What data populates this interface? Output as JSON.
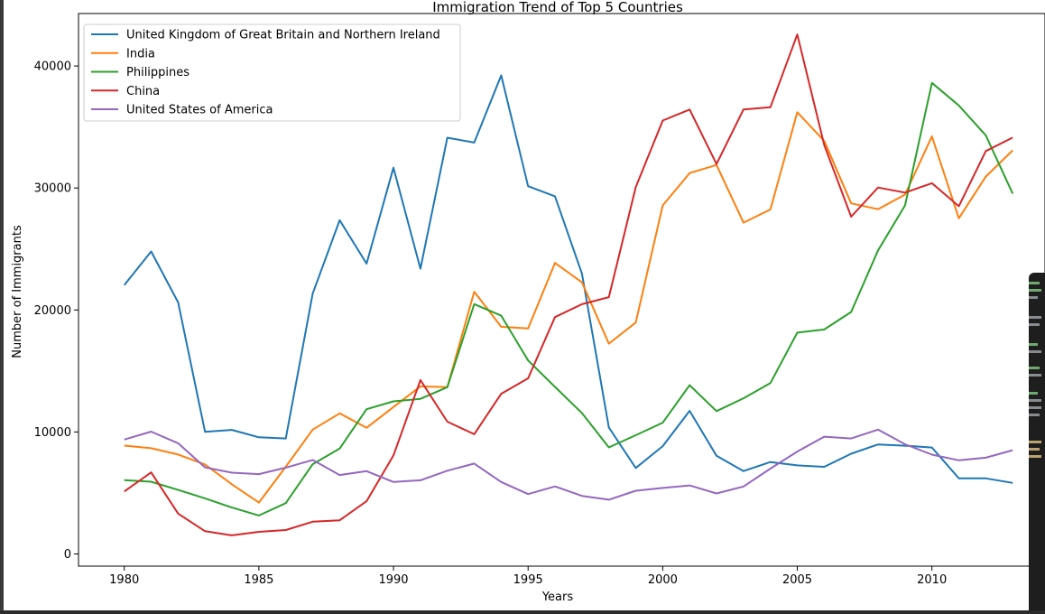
{
  "chart_data": {
    "type": "line",
    "title": "Immigration Trend of Top 5 Countries",
    "xlabel": "Years",
    "ylabel": "Number of Immigrants",
    "xlim": [
      1978.3,
      2014.2
    ],
    "ylim": [
      -1000,
      44300
    ],
    "xticks": [
      1980,
      1985,
      1990,
      1995,
      2000,
      2005,
      2010
    ],
    "yticks": [
      0,
      10000,
      20000,
      30000,
      40000
    ],
    "legend_position": "top-left",
    "grid": false,
    "x": [
      1980,
      1981,
      1982,
      1983,
      1984,
      1985,
      1986,
      1987,
      1988,
      1989,
      1990,
      1991,
      1992,
      1993,
      1994,
      1995,
      1996,
      1997,
      1998,
      1999,
      2000,
      2001,
      2002,
      2003,
      2004,
      2005,
      2006,
      2007,
      2008,
      2009,
      2010,
      2011,
      2012,
      2013
    ],
    "series": [
      {
        "name": "United Kingdom of Great Britain and Northern Ireland",
        "color": "#1f77b4",
        "values": [
          22045,
          24796,
          20620,
          10015,
          10170,
          9564,
          9470,
          21337,
          27359,
          23795,
          31668,
          23380,
          34123,
          33720,
          39231,
          30145,
          29322,
          22965,
          10367,
          7045,
          8840,
          11728,
          8046,
          6797,
          7533,
          7258,
          7140,
          8216,
          8979,
          8876,
          8724,
          6204,
          6195,
          5827
        ]
      },
      {
        "name": "India",
        "color": "#ff7f0e",
        "values": [
          8880,
          8670,
          8147,
          7338,
          5704,
          4211,
          7150,
          10189,
          11522,
          10343,
          12041,
          13734,
          13673,
          21496,
          18620,
          18489,
          23859,
          22268,
          17241,
          18974,
          28572,
          31223,
          31889,
          27155,
          28235,
          36210,
          33848,
          28742,
          28261,
          29456,
          34235,
          27509,
          30933,
          33087
        ]
      },
      {
        "name": "Philippines",
        "color": "#2ca02c",
        "values": [
          6051,
          5921,
          5249,
          4562,
          3801,
          3150,
          4166,
          7360,
          8639,
          11865,
          12509,
          12718,
          13670,
          20479,
          19532,
          15864,
          13692,
          11549,
          8735,
          9734,
          10763,
          13836,
          11707,
          12758,
          14004,
          18139,
          18400,
          19837,
          24887,
          28573,
          38617,
          36765,
          34315,
          29544
        ]
      },
      {
        "name": "China",
        "color": "#d62728",
        "values": [
          5123,
          6682,
          3308,
          1863,
          1527,
          1816,
          1960,
          2643,
          2758,
          4323,
          8076,
          14255,
          10846,
          9817,
          13128,
          14398,
          19415,
          20475,
          21049,
          30069,
          35529,
          36434,
          31961,
          36439,
          36619,
          42584,
          33518,
          27642,
          30037,
          29622,
          30391,
          28502,
          33024,
          34129
        ]
      },
      {
        "name": "United States of America",
        "color": "#9467bd",
        "values": [
          9378,
          10030,
          9074,
          7100,
          6661,
          6543,
          7074,
          7705,
          6469,
          6790,
          5895,
          6038,
          6824,
          7411,
          5895,
          4910,
          5533,
          4757,
          4451,
          5177,
          5408,
          5621,
          4955,
          5529,
          6997,
          8394,
          9613,
          9463,
          10190,
          8995,
          8142,
          7676,
          7891,
          8501
        ]
      }
    ]
  }
}
